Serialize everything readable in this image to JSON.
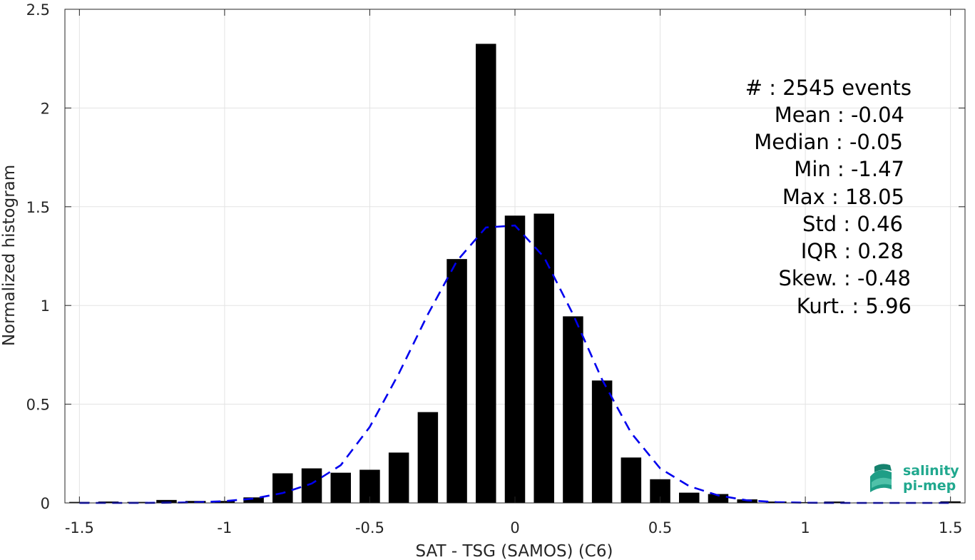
{
  "chart_data": {
    "type": "bar",
    "xlabel": "SAT - TSG (SAMOS) (C6)",
    "ylabel": "Normalized histogram",
    "xlim": [
      -1.55,
      1.55
    ],
    "ylim": [
      0,
      2.5
    ],
    "xticks": [
      -1.5,
      -1,
      -0.5,
      0,
      0.5,
      1,
      1.5
    ],
    "yticks": [
      0,
      0.5,
      1,
      1.5,
      2,
      2.5
    ],
    "xtick_labels": [
      "-1.5",
      "-1",
      "-0.5",
      "0",
      "0.5",
      "1",
      "1.5"
    ],
    "ytick_labels": [
      "0",
      "0.5",
      "1",
      "1.5",
      "2",
      "2.5"
    ],
    "grid": true,
    "bar_width": 0.07,
    "series": [
      {
        "kind": "bars",
        "color": "#000000",
        "x": [
          -1.5,
          -1.4,
          -1.3,
          -1.2,
          -1.1,
          -1.0,
          -0.9,
          -0.8,
          -0.7,
          -0.6,
          -0.5,
          -0.4,
          -0.3,
          -0.2,
          -0.1,
          0.0,
          0.1,
          0.2,
          0.3,
          0.4,
          0.5,
          0.6,
          0.7,
          0.8,
          0.9,
          1.0,
          1.1,
          1.2,
          1.3,
          1.4,
          1.5
        ],
        "values": [
          0.005,
          0.007,
          0.005,
          0.015,
          0.01,
          0.01,
          0.028,
          0.15,
          0.175,
          0.153,
          0.168,
          0.255,
          0.46,
          1.235,
          2.325,
          1.455,
          1.465,
          0.945,
          0.62,
          0.23,
          0.12,
          0.052,
          0.045,
          0.018,
          0.007,
          0.004,
          0.007,
          0.002,
          0.002,
          0.002,
          0.008
        ]
      },
      {
        "kind": "fit",
        "style": "dashed",
        "color": "#0000ee",
        "x": [
          -1.5,
          -1.4,
          -1.3,
          -1.2,
          -1.1,
          -1.0,
          -0.9,
          -0.8,
          -0.7,
          -0.6,
          -0.5,
          -0.4,
          -0.3,
          -0.2,
          -0.1,
          0.0,
          0.1,
          0.2,
          0.3,
          0.4,
          0.5,
          0.6,
          0.7,
          0.8,
          0.9,
          1.0,
          1.1,
          1.2,
          1.3,
          1.4,
          1.5
        ],
        "values": [
          0.0,
          0.0,
          0.0,
          0.001,
          0.003,
          0.009,
          0.022,
          0.05,
          0.098,
          0.191,
          0.385,
          0.655,
          0.955,
          1.225,
          1.395,
          1.405,
          1.245,
          0.955,
          0.625,
          0.355,
          0.175,
          0.085,
          0.038,
          0.013,
          0.004,
          0.001,
          0.0,
          0.0,
          0.0,
          0.0,
          0.0
        ]
      }
    ]
  },
  "stats": [
    "#  : 2545 events",
    "Mean : -0.04",
    "Median : -0.05",
    "Min : -1.47",
    "Max : 18.05",
    "Std : 0.46",
    "IQR : 0.28",
    "Skew. : -0.48",
    "Kurt. : 5.96"
  ],
  "logo": {
    "line1": "salinity",
    "line2": "pi-mep",
    "color": "#20a88e"
  }
}
